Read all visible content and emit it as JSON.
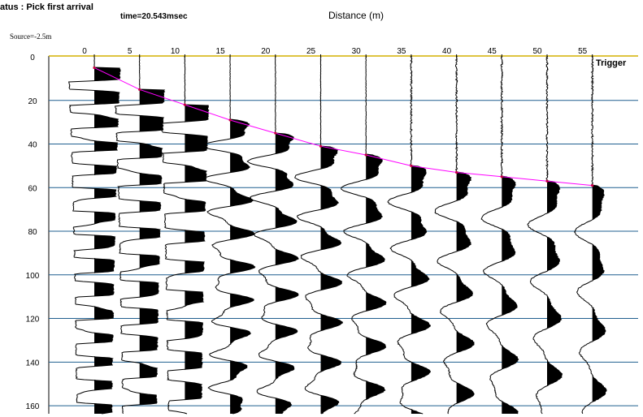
{
  "status": "atus : Pick first arrival",
  "time": "time=20.543msec",
  "source": "Source=-2.5m",
  "trigger_label": "Trigger",
  "colors": {
    "top_axis": "#d4b000",
    "gridlines": "#1f5f8f",
    "pick_curve": "#ff00ff",
    "trace": "#000000"
  },
  "chart_data": {
    "type": "line",
    "title": "",
    "xlabel": "Distance (m)",
    "ylabel": "",
    "x_ticks": [
      "0",
      "5",
      "10",
      "15",
      "20",
      "25",
      "30",
      "35",
      "40",
      "45",
      "50",
      "55"
    ],
    "y_ticks": [
      "0",
      "20",
      "40",
      "60",
      "80",
      "100",
      "120",
      "140",
      "160"
    ],
    "xlim": [
      0,
      55
    ],
    "ylim": [
      0,
      160
    ],
    "grid": "horizontal",
    "traces_offset_m": [
      0,
      5,
      10,
      15,
      20,
      25,
      30,
      35,
      40,
      45,
      50,
      55
    ],
    "first_arrival_ms": [
      5,
      15,
      22,
      29,
      35,
      41,
      45,
      50,
      53,
      55,
      57,
      59
    ],
    "legend": "none"
  }
}
